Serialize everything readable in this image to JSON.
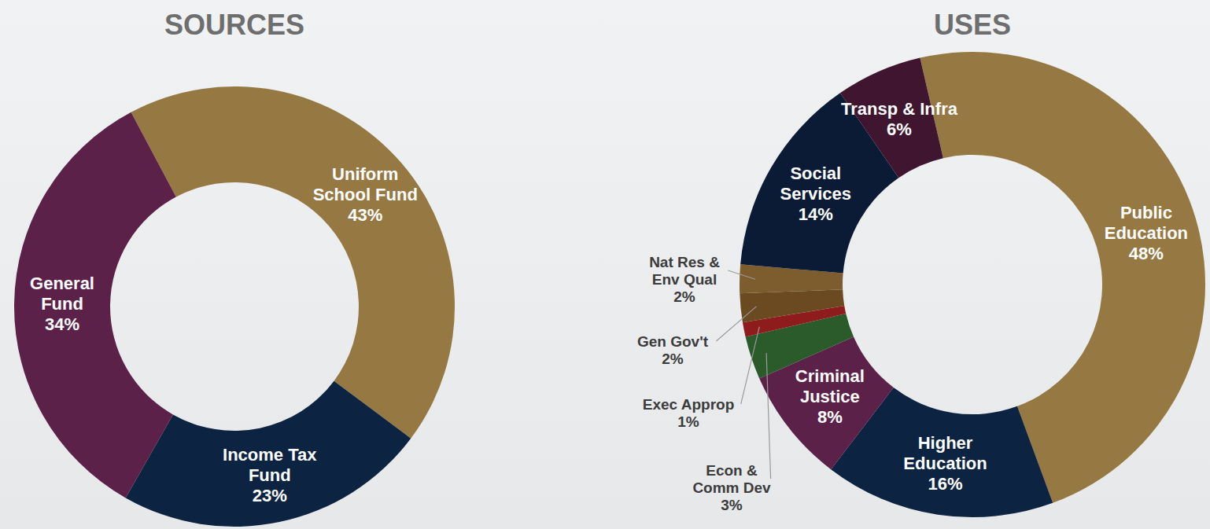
{
  "chart_data": [
    {
      "type": "donut",
      "title": "SOURCES",
      "categories": [
        "Uniform School Fund",
        "Income Tax Fund",
        "General Fund"
      ],
      "values": [
        43,
        23,
        34
      ],
      "value_labels": [
        "43%",
        "23%",
        "34%"
      ],
      "colors": [
        "#957842",
        "#0c2341",
        "#5c2149"
      ],
      "data_labels": true
    },
    {
      "type": "donut",
      "title": "USES",
      "categories": [
        "Public Education",
        "Higher Education",
        "Criminal Justice",
        "Econ & Comm Dev",
        "Exec Approp",
        "Gen Gov't",
        "Nat Res & Env Qual",
        "Social Services",
        "Transp & Infra"
      ],
      "values": [
        48,
        16,
        8,
        3,
        1,
        2,
        2,
        14,
        6
      ],
      "value_labels": [
        "48%",
        "16%",
        "8%",
        "3%",
        "1%",
        "2%",
        "2%",
        "14%",
        "6%"
      ],
      "colors": [
        "#957842",
        "#0c2341",
        "#5c2149",
        "#2b5a2b",
        "#8f1c1c",
        "#6b4a22",
        "#7d5c2e",
        "#0b1b36",
        "#3f1530"
      ],
      "data_labels": true
    }
  ]
}
